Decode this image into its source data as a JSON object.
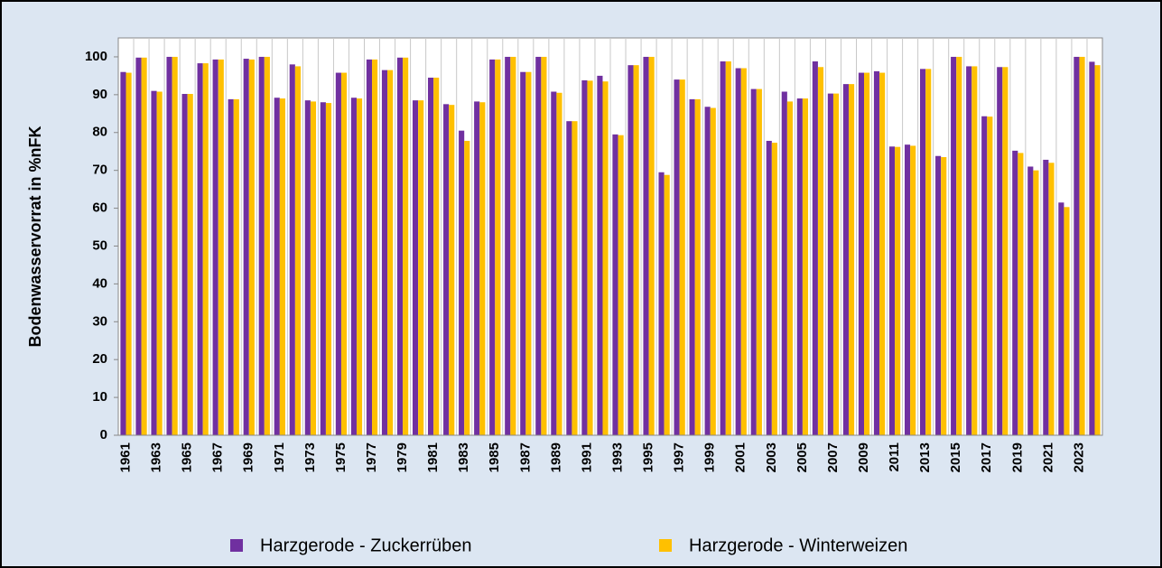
{
  "chart_data": {
    "type": "bar",
    "y_label": "Bodenwasservorrat in %nFK",
    "categories": [
      "1961",
      null,
      "1963",
      null,
      "1965",
      null,
      "1967",
      null,
      "1969",
      null,
      "1971",
      null,
      "1973",
      null,
      "1975",
      null,
      "1977",
      null,
      "1979",
      null,
      "1981",
      null,
      "1983",
      null,
      "1985",
      null,
      "1987",
      null,
      "1989",
      null,
      "1991",
      null,
      "1993",
      null,
      "1995",
      null,
      "1997",
      null,
      "1999",
      null,
      "2001",
      null,
      "2003",
      null,
      "2005",
      null,
      "2007",
      null,
      "2009",
      null,
      "2011",
      null,
      "2013",
      null,
      "2015",
      null,
      "2017",
      null,
      "2019",
      null,
      "2021",
      null,
      "2023",
      null
    ],
    "series": [
      {
        "name": "Harzgerode - Zuckerrüben",
        "color": "#7030a0",
        "values": [
          96,
          99.8,
          91,
          100,
          90.2,
          98.3,
          99.3,
          88.8,
          99.5,
          100,
          89.2,
          98,
          88.5,
          88,
          95.8,
          89.2,
          99.3,
          96.5,
          99.8,
          88.5,
          94.5,
          87.5,
          80.5,
          88.2,
          99.3,
          100,
          96,
          100,
          90.8,
          83,
          93.8,
          95,
          79.5,
          97.8,
          100,
          69.5,
          94,
          88.8,
          86.8,
          98.8,
          97,
          91.5,
          77.8,
          90.8,
          89,
          98.8,
          90.3,
          92.8,
          95.8,
          96.2,
          76.3,
          76.8,
          96.8,
          73.8,
          100,
          97.5,
          84.3,
          97.3,
          75.2,
          71,
          72.8,
          61.5,
          100,
          98.7
        ]
      },
      {
        "name": "Harzgerode - Winterweizen",
        "color": "#ffc000",
        "values": [
          95.8,
          99.8,
          90.8,
          100,
          90.2,
          98.3,
          99.3,
          88.8,
          99.3,
          100,
          89,
          97.5,
          88.2,
          87.8,
          95.8,
          89,
          99.3,
          96.5,
          99.8,
          88.5,
          94.5,
          87.3,
          77.8,
          88,
          99.3,
          100,
          96,
          100,
          90.5,
          83,
          93.7,
          93.5,
          79.3,
          97.8,
          100,
          68.8,
          94,
          88.8,
          86.5,
          98.8,
          97,
          91.5,
          77.3,
          88.2,
          89,
          97.3,
          90.3,
          92.8,
          95.8,
          95.8,
          76.2,
          76.5,
          96.8,
          73.5,
          100,
          97.5,
          84.2,
          97.3,
          74.6,
          70,
          72,
          60.3,
          100,
          97.8
        ]
      }
    ],
    "ylim": [
      0,
      105
    ],
    "yticks": [
      0,
      10,
      20,
      30,
      40,
      50,
      60,
      70,
      80,
      90,
      100
    ]
  }
}
